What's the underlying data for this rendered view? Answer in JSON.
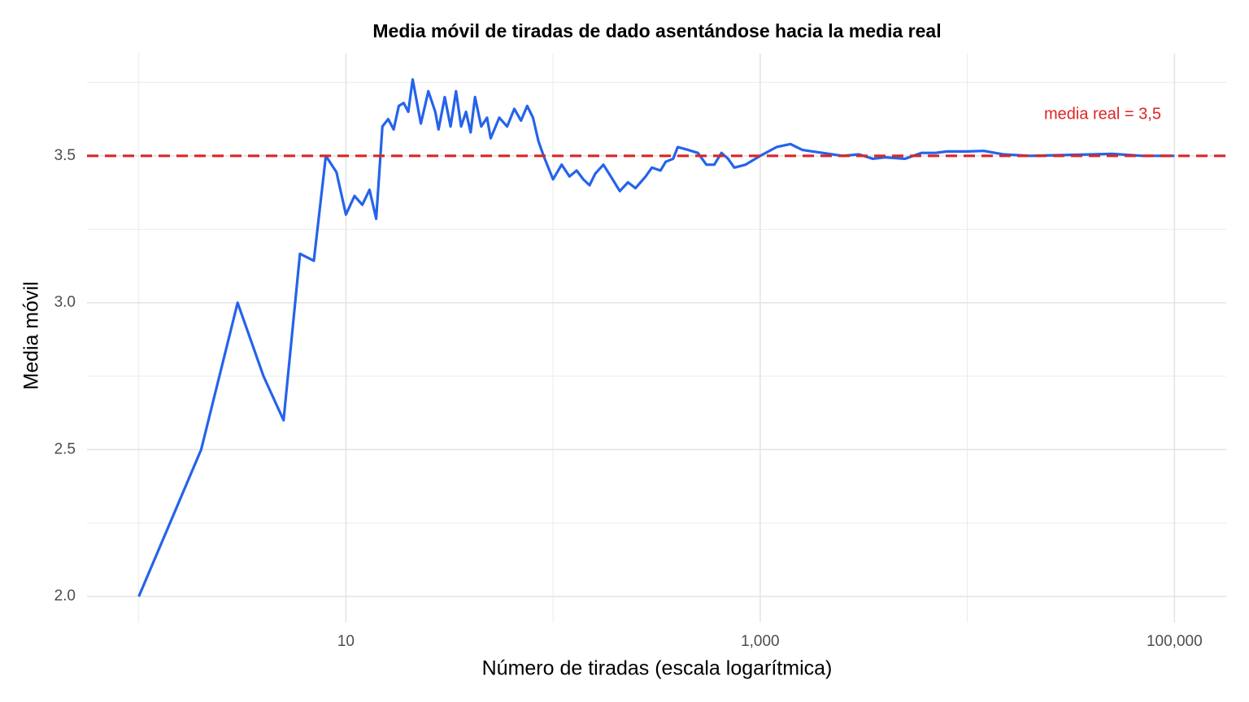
{
  "chart_data": {
    "type": "line",
    "title": "Media móvil de tiradas de dado asentándose hacia la media real",
    "x_label": "Número de tiradas (escala logarítmica)",
    "y_label": "Media móvil",
    "x_scale": "log",
    "xlim": [
      0.5623,
      177828
    ],
    "ylim": [
      1.912,
      3.848
    ],
    "xticks": [
      10,
      {
        "value": 1000,
        "label": "1,000"
      },
      {
        "value": 100000,
        "label": "100,000"
      }
    ],
    "xminor": [
      1,
      100,
      10000
    ],
    "yticks": [
      {
        "value": 2,
        "label": "2.0"
      },
      2.5,
      {
        "value": 3,
        "label": "3.0"
      },
      3.5
    ],
    "yminor": [
      2.25,
      2.75,
      3.25,
      3.75
    ],
    "grid": true,
    "color": "#2563eb",
    "x": [
      1,
      2,
      3,
      4,
      5,
      6,
      7,
      8,
      9,
      10,
      11,
      12,
      13,
      14,
      15,
      16,
      17,
      18,
      19,
      20,
      21,
      23,
      25,
      27,
      28,
      30,
      32,
      34,
      36,
      38,
      40,
      42,
      45,
      48,
      50,
      55,
      60,
      65,
      70,
      75,
      80,
      85,
      90,
      100,
      110,
      120,
      130,
      140,
      150,
      160,
      175,
      190,
      210,
      230,
      250,
      280,
      300,
      330,
      350,
      380,
      400,
      450,
      500,
      550,
      600,
      650,
      700,
      750,
      850,
      1000,
      1200,
      1400,
      1600,
      2000,
      2500,
      3000,
      3500,
      4000,
      5000,
      6000,
      7000,
      8000,
      10000,
      12000,
      15000,
      20000,
      30000,
      40000,
      50000,
      70000,
      100000
    ],
    "values": [
      2.0,
      2.5,
      3.0,
      2.75,
      2.6,
      3.1667,
      3.1429,
      3.5,
      3.4444,
      3.3,
      3.3636,
      3.3333,
      3.3846,
      3.2857,
      3.6,
      3.625,
      3.59,
      3.67,
      3.68,
      3.65,
      3.76,
      3.61,
      3.72,
      3.65,
      3.59,
      3.7,
      3.6,
      3.72,
      3.6,
      3.65,
      3.58,
      3.7,
      3.6,
      3.63,
      3.56,
      3.63,
      3.6,
      3.66,
      3.62,
      3.67,
      3.63,
      3.55,
      3.5,
      3.42,
      3.47,
      3.43,
      3.45,
      3.42,
      3.4,
      3.44,
      3.47,
      3.43,
      3.38,
      3.41,
      3.39,
      3.43,
      3.46,
      3.45,
      3.48,
      3.49,
      3.53,
      3.52,
      3.51,
      3.47,
      3.47,
      3.51,
      3.49,
      3.46,
      3.47,
      3.5,
      3.53,
      3.54,
      3.52,
      3.51,
      3.5,
      3.505,
      3.49,
      3.495,
      3.49,
      3.51,
      3.51,
      3.515,
      3.515,
      3.517,
      3.505,
      3.5,
      3.503,
      3.505,
      3.507,
      3.5,
      3.5
    ],
    "hline": {
      "value": 3.5,
      "color": "#dc2626",
      "label": "media real = 3,5",
      "label_x": 45000,
      "label_y": 3.64
    }
  }
}
